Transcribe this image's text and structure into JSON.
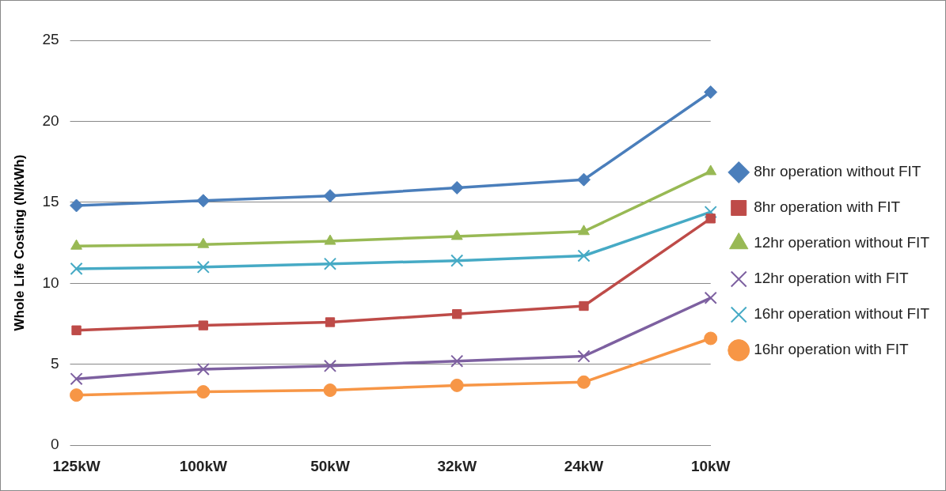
{
  "chart_data": {
    "type": "line",
    "ylabel": "Whole Life Costing (N/kWh)",
    "categories": [
      "125kW",
      "100kW",
      "50kW",
      "32kW",
      "24kW",
      "10kW"
    ],
    "ylim": [
      0,
      25
    ],
    "yticks": [
      0,
      5,
      10,
      15,
      20,
      25
    ],
    "grid": "y",
    "legend": "right",
    "series": [
      {
        "name": "8hr operation without FIT",
        "color": "#4a7ebb",
        "marker": "diamond",
        "values": [
          14.8,
          15.1,
          15.4,
          15.9,
          16.4,
          21.8
        ]
      },
      {
        "name": "8hr operation with FIT",
        "color": "#be4b48",
        "marker": "square",
        "values": [
          7.1,
          7.4,
          7.6,
          8.1,
          8.6,
          14.0
        ]
      },
      {
        "name": "12hr operation without FIT",
        "color": "#98b954",
        "marker": "triangle",
        "values": [
          12.3,
          12.4,
          12.6,
          12.9,
          13.2,
          16.9
        ]
      },
      {
        "name": "12hr operation with FIT",
        "color": "#7d60a0",
        "marker": "cross",
        "values": [
          4.1,
          4.7,
          4.9,
          5.2,
          5.5,
          9.1
        ]
      },
      {
        "name": "16hr operation without FIT",
        "color": "#46aac5",
        "marker": "cross",
        "values": [
          10.9,
          11.0,
          11.2,
          11.4,
          11.7,
          14.4
        ]
      },
      {
        "name": "16hr operation with FIT",
        "color": "#f79646",
        "marker": "circle",
        "values": [
          3.1,
          3.3,
          3.4,
          3.7,
          3.9,
          6.6
        ]
      }
    ]
  }
}
